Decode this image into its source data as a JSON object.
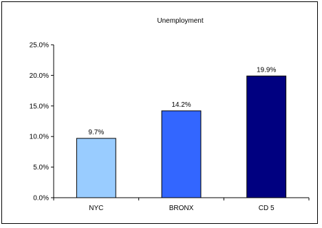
{
  "chart_data": {
    "type": "bar",
    "title": "Unemployment",
    "xlabel": "",
    "ylabel": "",
    "categories": [
      "NYC",
      "BRONX",
      "CD 5"
    ],
    "values": [
      9.7,
      14.2,
      19.9
    ],
    "data_labels": [
      "9.7%",
      "14.2%",
      "19.9%"
    ],
    "bar_colors": [
      "#99ccff",
      "#3366ff",
      "#000080"
    ],
    "ylim": [
      0,
      25
    ],
    "yticks": [
      0,
      5,
      10,
      15,
      20,
      25
    ],
    "ytick_labels": [
      "0.0%",
      "5.0%",
      "10.0%",
      "15.0%",
      "20.0%",
      "25.0%"
    ],
    "grid": false,
    "legend": "none"
  }
}
